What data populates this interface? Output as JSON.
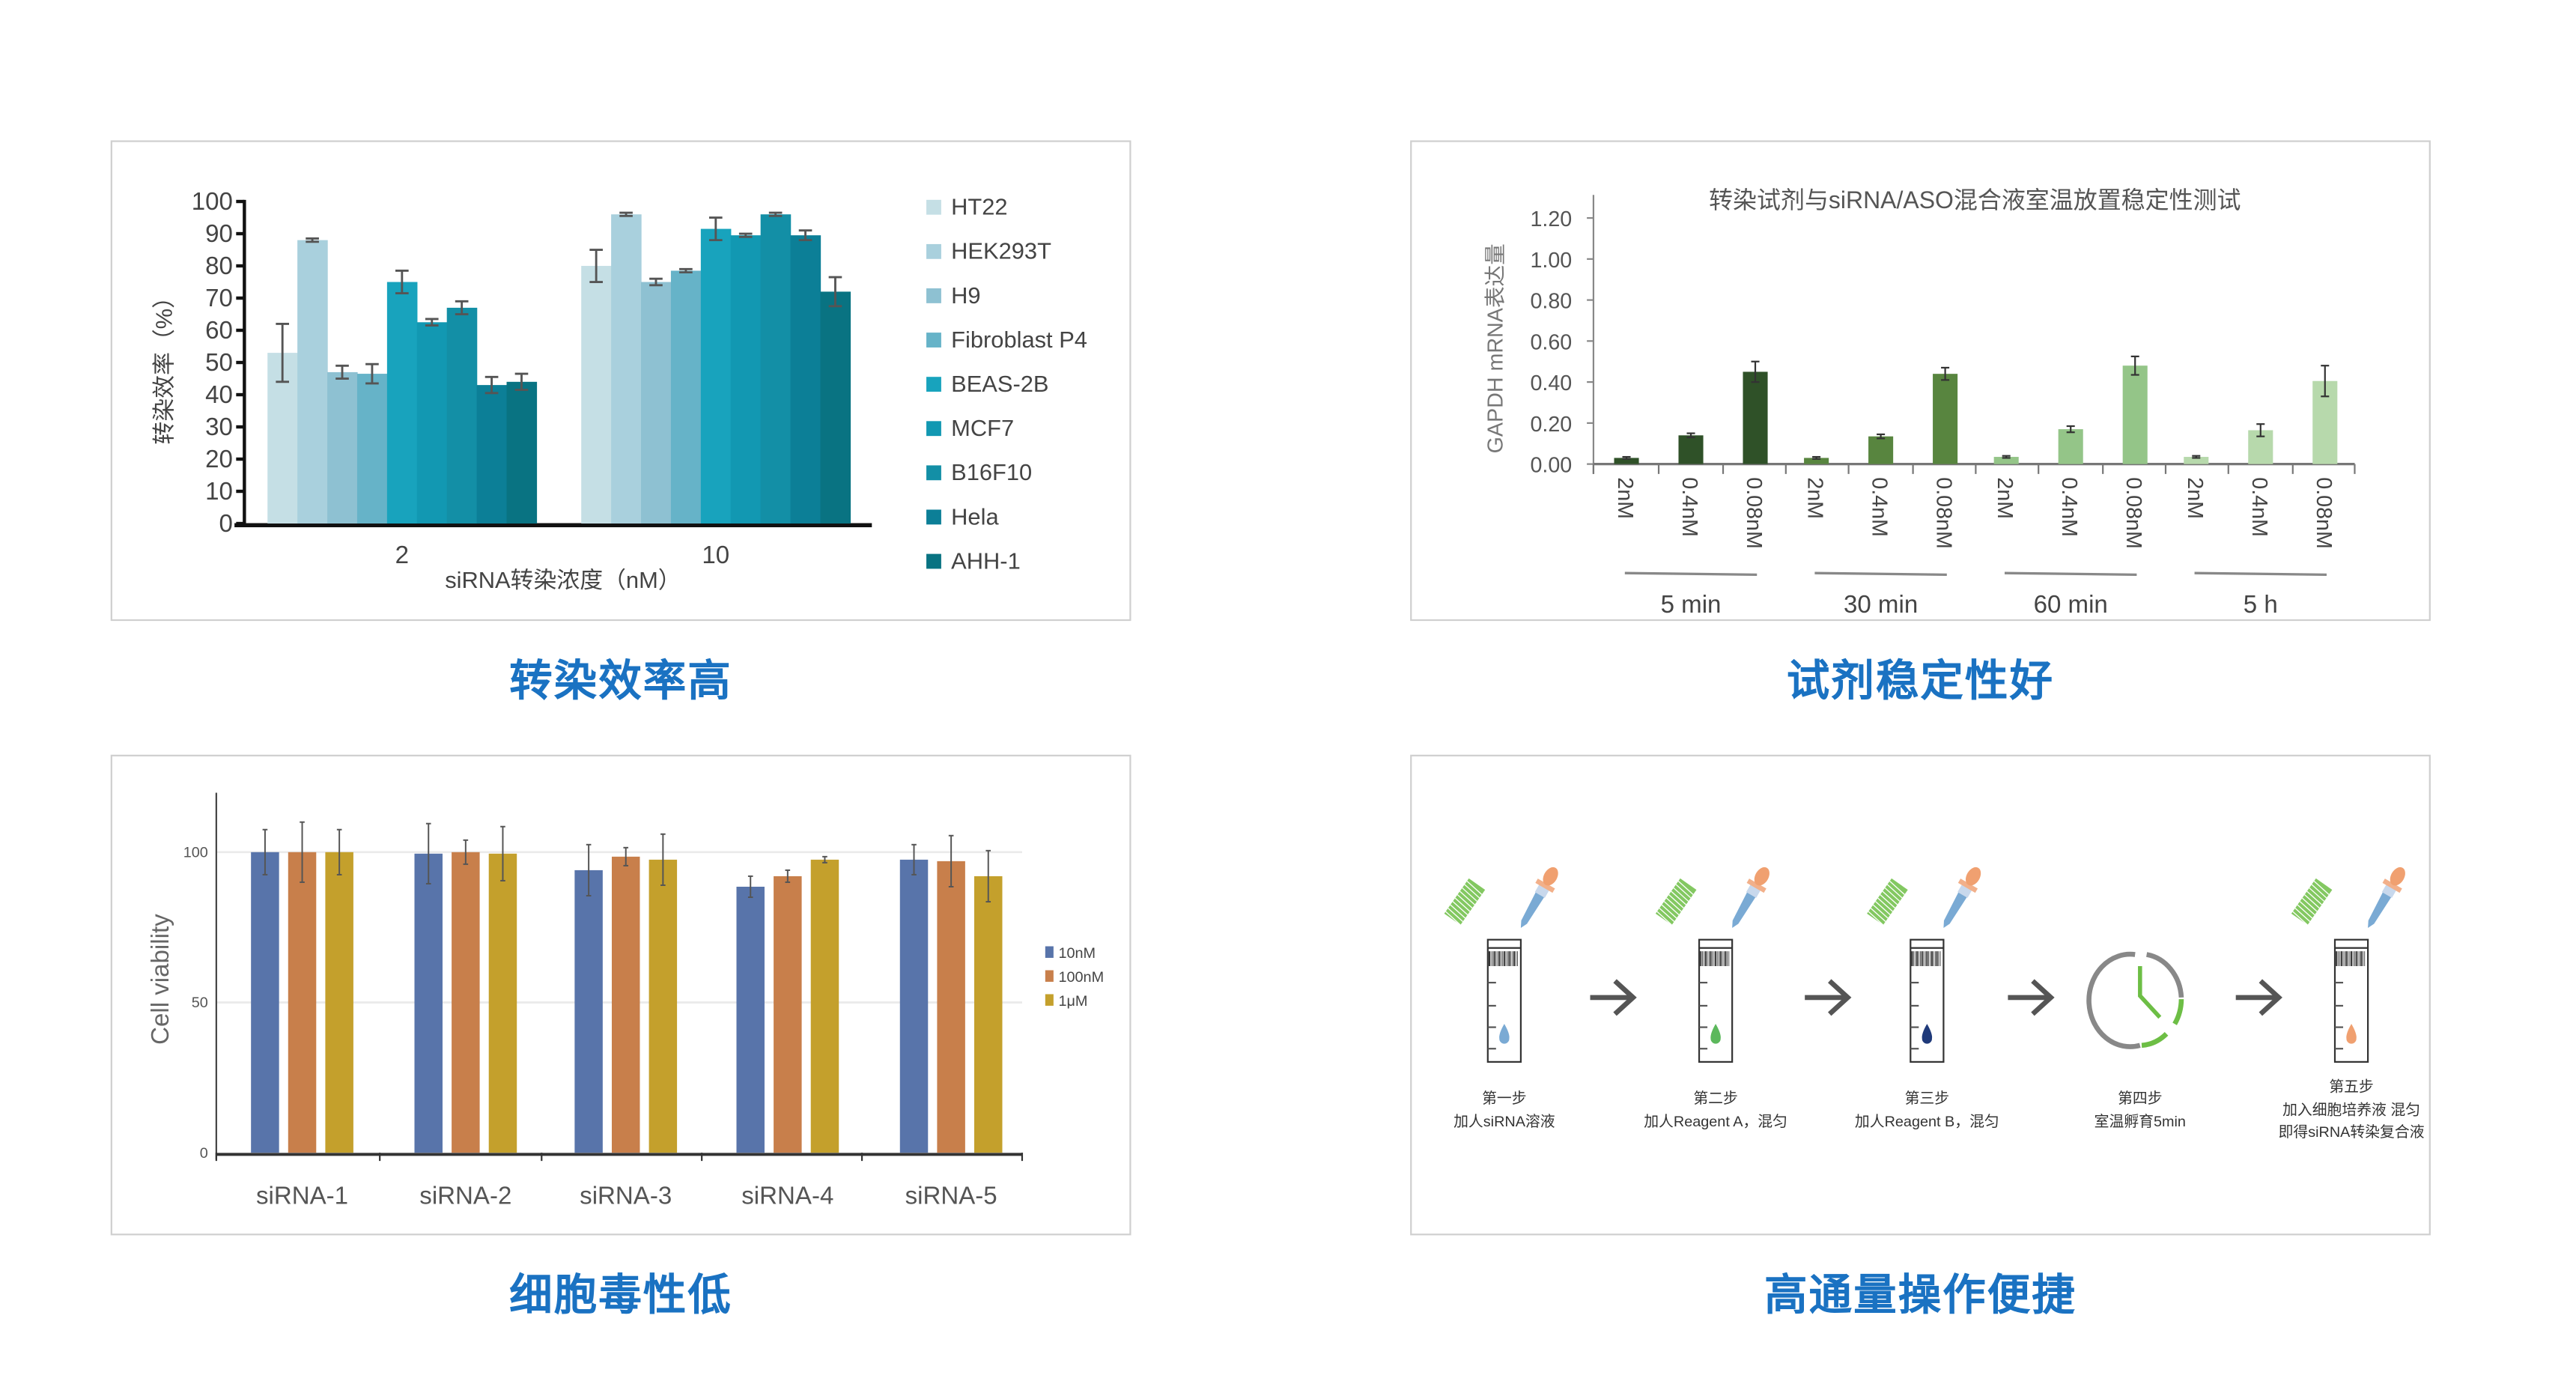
{
  "captions": [
    "转染效率高",
    "试剂稳定性好",
    "细胞毒性低",
    "高通量操作便捷"
  ],
  "chart_data": [
    {
      "type": "bar",
      "title": "",
      "xlabel": "siRNA转染浓度（nM）",
      "ylabel": "转染效率（%）",
      "ylim": [
        0,
        100
      ],
      "yticks": [
        "0",
        "10",
        "20",
        "30",
        "40",
        "50",
        "60",
        "70",
        "80",
        "90",
        "100"
      ],
      "categories": [
        "2",
        "10"
      ],
      "legend_position": "right",
      "series": [
        {
          "name": "HT22",
          "color": "#c5dfe5",
          "values": [
            53,
            80
          ],
          "errors": [
            9,
            5
          ]
        },
        {
          "name": "HEK293T",
          "color": "#a9d0dd",
          "values": [
            88,
            96
          ],
          "errors": [
            0.5,
            0.5
          ]
        },
        {
          "name": "H9",
          "color": "#8ec1d2",
          "values": [
            47,
            75
          ],
          "errors": [
            2,
            1
          ]
        },
        {
          "name": "Fibroblast P4",
          "color": "#66b3c8",
          "values": [
            46.5,
            78.5
          ],
          "errors": [
            3,
            0.5
          ]
        },
        {
          "name": "BEAS-2B",
          "color": "#18a3bd",
          "values": [
            75,
            91.5
          ],
          "errors": [
            3.5,
            3.5
          ]
        },
        {
          "name": "MCF7",
          "color": "#1298b2",
          "values": [
            62.5,
            89.5
          ],
          "errors": [
            1,
            0.5
          ]
        },
        {
          "name": "B16F10",
          "color": "#138fa6",
          "values": [
            67,
            96
          ],
          "errors": [
            2,
            0.5
          ]
        },
        {
          "name": "Hela",
          "color": "#0c7f97",
          "values": [
            43,
            89.5
          ],
          "errors": [
            2.5,
            1.5
          ]
        },
        {
          "name": "AHH-1",
          "color": "#097382",
          "values": [
            44,
            72
          ],
          "errors": [
            2.5,
            4.5
          ]
        }
      ]
    },
    {
      "type": "bar",
      "title": "转染试剂与siRNA/ASO混合液室温放置稳定性测试",
      "xlabel": "",
      "ylabel": "GAPDH mRNA表达量",
      "ylim": [
        0,
        1.2
      ],
      "yticks": [
        "0.00",
        "0.20",
        "0.40",
        "0.60",
        "0.80",
        "1.00",
        "1.20"
      ],
      "groups": [
        {
          "name": "5 min",
          "color": "#2f5128",
          "categories": [
            "2nM",
            "0.4nM",
            "0.08nM"
          ],
          "values": [
            0.03,
            0.14,
            0.45
          ],
          "errors": [
            0.005,
            0.01,
            0.05
          ]
        },
        {
          "name": "30 min",
          "color": "#58853f",
          "categories": [
            "2nM",
            "0.4nM",
            "0.08nM"
          ],
          "values": [
            0.03,
            0.135,
            0.44
          ],
          "errors": [
            0.005,
            0.01,
            0.03
          ]
        },
        {
          "name": "60 min",
          "color": "#94c588",
          "categories": [
            "2nM",
            "0.4nM",
            "0.08nM"
          ],
          "values": [
            0.035,
            0.17,
            0.48
          ],
          "errors": [
            0.005,
            0.015,
            0.045
          ]
        },
        {
          "name": "5 h",
          "color": "#b7d9ac",
          "categories": [
            "2nM",
            "0.4nM",
            "0.08nM"
          ],
          "values": [
            0.035,
            0.165,
            0.405
          ],
          "errors": [
            0.005,
            0.03,
            0.075
          ]
        }
      ]
    },
    {
      "type": "bar",
      "title": "",
      "xlabel": "",
      "ylabel": "Cell viability",
      "ylim": [
        0,
        100
      ],
      "yticks": [
        "0",
        "50",
        "100"
      ],
      "grid": true,
      "categories": [
        "siRNA-1",
        "siRNA-2",
        "siRNA-3",
        "siRNA-4",
        "siRNA-5"
      ],
      "legend_position": "right",
      "series": [
        {
          "name": "10nM",
          "color": "#5874aa",
          "values": [
            100,
            99.5,
            94,
            88.5,
            97.5
          ],
          "errors": [
            7.5,
            10,
            8.5,
            3.5,
            5
          ]
        },
        {
          "name": "100nM",
          "color": "#c87f4b",
          "values": [
            100,
            100,
            98.5,
            92,
            97
          ],
          "errors": [
            10,
            4,
            3,
            2,
            8.5
          ]
        },
        {
          "name": "1μM",
          "color": "#c4a02c",
          "values": [
            100,
            99.5,
            97.5,
            97.5,
            92
          ],
          "errors": [
            7.5,
            9,
            8.5,
            1,
            8.5
          ]
        }
      ]
    }
  ],
  "workflow": {
    "steps": [
      {
        "title": "第一步",
        "lines": [
          "加人siRNA溶液"
        ],
        "drop_color": "#7aaad4",
        "icon": "tube"
      },
      {
        "title": "第二步",
        "lines": [
          "加人Reagent A，混匀"
        ],
        "drop_color": "#5cb85c",
        "icon": "tube"
      },
      {
        "title": "第三步",
        "lines": [
          "加人Reagent B，混匀"
        ],
        "drop_color": "#1f3a7a",
        "icon": "tube"
      },
      {
        "title": "第四步",
        "lines": [
          "室温孵育5min"
        ],
        "icon": "clock"
      },
      {
        "title": "第五步",
        "lines": [
          "加入细胞培养液 混匀",
          "即得siRNA转染复合液"
        ],
        "drop_color": "#f0a070",
        "icon": "tube"
      }
    ]
  }
}
